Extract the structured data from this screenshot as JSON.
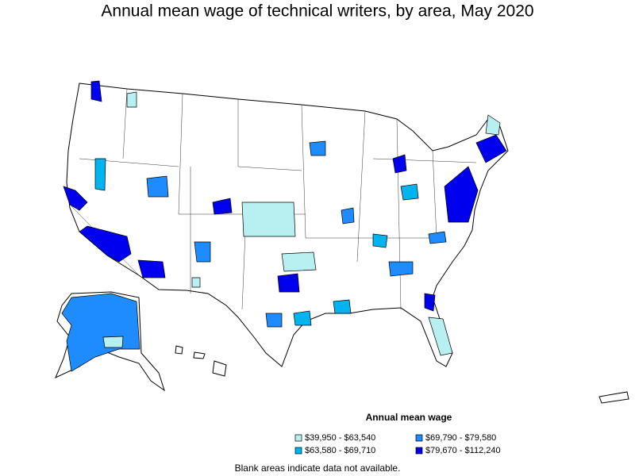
{
  "title": "Annual mean wage of technical writers, by area, May 2020",
  "legend": {
    "title": "Annual mean wage",
    "items": [
      {
        "label": "$39,950 - $63,540",
        "color": "#b8f0f2"
      },
      {
        "label": "$63,580 - $69,710",
        "color": "#00b4f0"
      },
      {
        "label": "$69,790 - $79,580",
        "color": "#1e8cff"
      },
      {
        "label": "$79,670 - $112,240",
        "color": "#0000ee"
      }
    ]
  },
  "note": "Blank areas indicate data not available."
}
